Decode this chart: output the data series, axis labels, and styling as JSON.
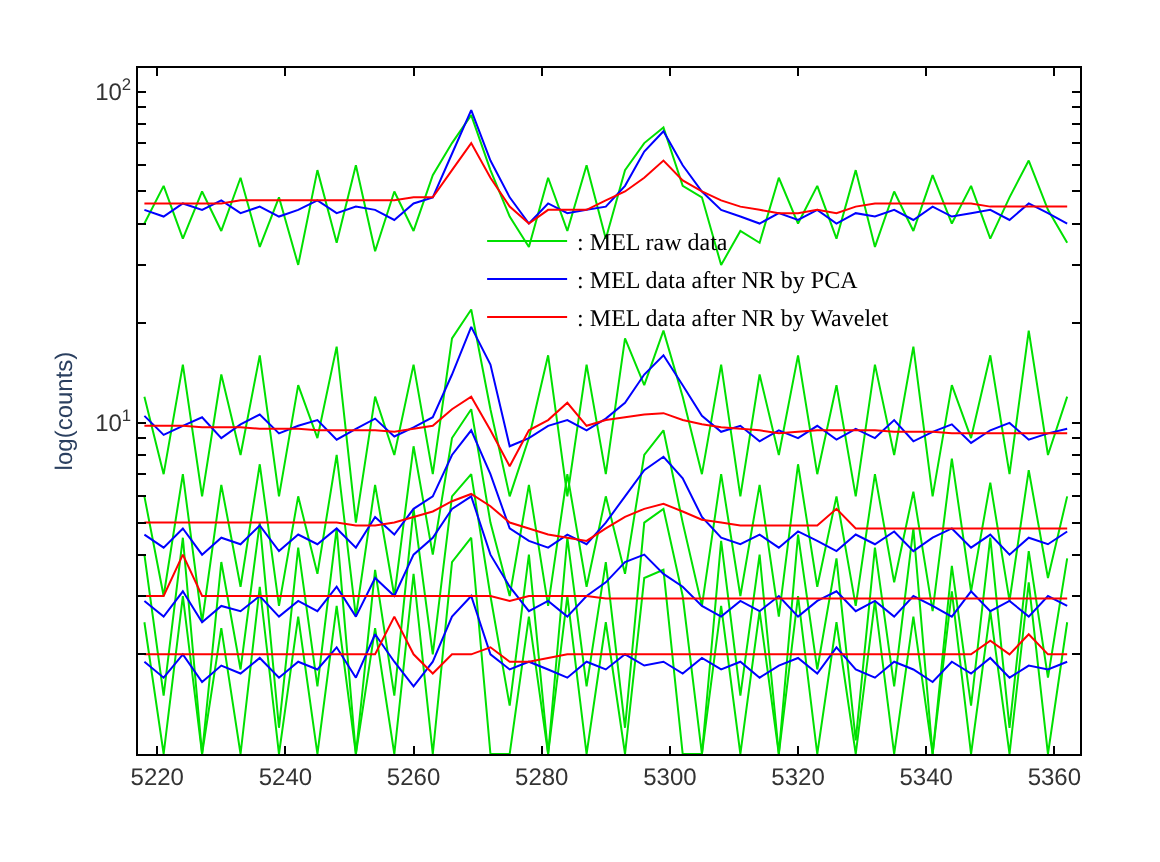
{
  "chart_data": {
    "type": "line",
    "ylabel": "log(counts)",
    "log": "y",
    "legend": "top",
    "marker": "none",
    "line_style": "solid",
    "xlim": [
      5217,
      5364
    ],
    "xticks": [
      5220,
      5240,
      5260,
      5280,
      5300,
      5320,
      5340,
      5360
    ],
    "ylim": [
      1,
      118
    ],
    "yticks": [
      {
        "value": 2,
        "label": null
      },
      {
        "value": 3,
        "label": null
      },
      {
        "value": 4,
        "label": null
      },
      {
        "value": 5,
        "label": null
      },
      {
        "value": 6,
        "label": null
      },
      {
        "value": 7,
        "label": null
      },
      {
        "value": 8,
        "label": null
      },
      {
        "value": 9,
        "label": null
      },
      {
        "value": 10,
        "label": "10$^{1}$"
      },
      {
        "value": 20,
        "label": null
      },
      {
        "value": 30,
        "label": null
      },
      {
        "value": 40,
        "label": null
      },
      {
        "value": 50,
        "label": null
      },
      {
        "value": 60,
        "label": null
      },
      {
        "value": 70,
        "label": null
      },
      {
        "value": 80,
        "label": null
      },
      {
        "value": 90,
        "label": null
      },
      {
        "value": 100,
        "label": "10$^{2}$"
      }
    ],
    "x": [
      5218,
      5221,
      5224,
      5227,
      5230,
      5233,
      5236,
      5239,
      5242,
      5245,
      5248,
      5251,
      5254,
      5257,
      5260,
      5263,
      5266,
      5269,
      5272,
      5275,
      5278,
      5281,
      5284,
      5287,
      5290,
      5293,
      5296,
      5299,
      5302,
      5305,
      5308,
      5311,
      5314,
      5317,
      5320,
      5323,
      5326,
      5329,
      5332,
      5335,
      5338,
      5341,
      5344,
      5347,
      5350,
      5353,
      5356,
      5359,
      5362
    ],
    "series": [
      {
        "name": ": MEL raw data",
        "color": "#00e000",
        "values": [
          40,
          52,
          36,
          50,
          38,
          55,
          34,
          48,
          30,
          58,
          35,
          60,
          33,
          50,
          38,
          56,
          70,
          85,
          58,
          42,
          34,
          55,
          38,
          60,
          36,
          58,
          70,
          78,
          52,
          48,
          30,
          38,
          35,
          55,
          40,
          52,
          36,
          58,
          34,
          50,
          38,
          56,
          40,
          52,
          36,
          48,
          62,
          44,
          35
        ]
      },
      {
        "color": "#00e000",
        "values": [
          12,
          7,
          15,
          6,
          14,
          8,
          16,
          6,
          13,
          9,
          17,
          5,
          12,
          8,
          15,
          7,
          18,
          22,
          11,
          6,
          9,
          16,
          6,
          15,
          7,
          18,
          13,
          19,
          12,
          7,
          15,
          6,
          14,
          8,
          16,
          7,
          13,
          6,
          15,
          8,
          17,
          6,
          13,
          9,
          16,
          7,
          19,
          8,
          12
        ]
      },
      {
        "color": "#00e000",
        "values": [
          6,
          3,
          7,
          2.5,
          6.5,
          3.2,
          7.5,
          2.8,
          6,
          3.5,
          8,
          2.6,
          6.5,
          3,
          8.5,
          4,
          9,
          11,
          5,
          3,
          6.5,
          2.8,
          7,
          3.2,
          6,
          3.5,
          8,
          9.5,
          5,
          2.8,
          7,
          3,
          6.5,
          2.6,
          7.5,
          3.2,
          6,
          2.8,
          7,
          3.3,
          6.2,
          2.7,
          7.8,
          3.1,
          6.6,
          2.9,
          7.2,
          3.4,
          6
        ]
      },
      {
        "color": "#00e000",
        "values": [
          4,
          1.5,
          4.5,
          1,
          3.8,
          1.8,
          5,
          1.2,
          4.2,
          1.6,
          4.8,
          1,
          3.6,
          1.5,
          5.5,
          2,
          6,
          7,
          3,
          1.4,
          4,
          1,
          4.5,
          1.6,
          3.8,
          1.2,
          5,
          5.5,
          3,
          1,
          4.4,
          1.5,
          4,
          1,
          4.6,
          1.8,
          3.9,
          1.1,
          4.2,
          1.6,
          4.8,
          1,
          3.7,
          1.4,
          4.5,
          1.2,
          4.1,
          1.7,
          3.9
        ]
      },
      {
        "color": "#00e000",
        "values": [
          2.5,
          1,
          3,
          1,
          2.4,
          1,
          3.2,
          1,
          2.6,
          1,
          2.8,
          1,
          2.4,
          1,
          3.5,
          1,
          3.8,
          4.5,
          1,
          1,
          2.6,
          1,
          3,
          1,
          2.5,
          1,
          3.4,
          3.6,
          1,
          1,
          2.8,
          1,
          2.7,
          1,
          3,
          1,
          2.5,
          1,
          2.9,
          1,
          2.6,
          1,
          3.1,
          1,
          2.7,
          1,
          3.3,
          1,
          2.5
        ]
      },
      {
        "name": ": MEL data after NR by PCA",
        "color": "#0000ff",
        "values": [
          44,
          42,
          46,
          44,
          47,
          43,
          45,
          42,
          44,
          47,
          43,
          45,
          44,
          41,
          46,
          48,
          65,
          88,
          62,
          48,
          40,
          46,
          43,
          44,
          45,
          52,
          66,
          76,
          60,
          50,
          44,
          42,
          40,
          43,
          41,
          44,
          40,
          43,
          42,
          44,
          41,
          45,
          42,
          43,
          44,
          41,
          46,
          43,
          40
        ]
      },
      {
        "color": "#0000ff",
        "values": [
          10.5,
          9.2,
          9.8,
          10.4,
          9.0,
          9.9,
          10.6,
          9.3,
          9.8,
          10.2,
          8.9,
          9.6,
          10.3,
          9.1,
          9.7,
          10.4,
          14,
          19.5,
          15,
          8.5,
          9.0,
          9.8,
          10.2,
          9.5,
          10.3,
          11.5,
          14,
          16,
          13,
          10.5,
          9.4,
          9.8,
          8.8,
          9.5,
          9.0,
          9.8,
          8.9,
          9.6,
          9.0,
          10.2,
          8.8,
          9.4,
          9.9,
          8.7,
          9.5,
          10.0,
          8.9,
          9.3,
          9.6
        ]
      },
      {
        "color": "#0000ff",
        "values": [
          4.6,
          4.2,
          4.8,
          4.0,
          4.5,
          4.3,
          4.9,
          4.1,
          4.6,
          4.3,
          4.8,
          4.2,
          5.2,
          4.6,
          5.5,
          6.0,
          8.0,
          9.5,
          7,
          4.8,
          4.4,
          4.2,
          4.6,
          4.3,
          5.0,
          6.0,
          7.2,
          7.9,
          6.8,
          5.2,
          4.5,
          4.3,
          4.6,
          4.2,
          4.7,
          4.4,
          4.1,
          4.6,
          4.3,
          4.7,
          4.1,
          4.5,
          4.8,
          4.2,
          4.6,
          4.0,
          4.5,
          4.3,
          4.7
        ]
      },
      {
        "color": "#0000ff",
        "values": [
          2.9,
          2.6,
          3.1,
          2.5,
          2.8,
          2.7,
          3.0,
          2.6,
          2.9,
          2.7,
          3.2,
          2.6,
          3.4,
          3.0,
          4.0,
          4.5,
          5.5,
          6.0,
          4.0,
          3.2,
          2.7,
          2.9,
          2.6,
          3.0,
          3.3,
          3.8,
          4.0,
          3.5,
          3.2,
          2.8,
          2.6,
          2.9,
          2.7,
          3.0,
          2.6,
          2.9,
          3.1,
          2.7,
          2.9,
          2.6,
          3.0,
          2.8,
          2.6,
          3.1,
          2.7,
          2.9,
          2.6,
          3.0,
          2.8
        ]
      },
      {
        "color": "#0000ff",
        "values": [
          1.9,
          1.7,
          2.0,
          1.65,
          1.85,
          1.75,
          1.95,
          1.7,
          1.9,
          1.8,
          2.1,
          1.7,
          2.3,
          1.9,
          1.6,
          1.9,
          2.6,
          3.0,
          2.0,
          1.8,
          1.9,
          1.8,
          1.7,
          1.9,
          1.8,
          2.0,
          1.85,
          1.9,
          1.75,
          1.95,
          1.8,
          1.9,
          1.7,
          1.85,
          1.95,
          1.75,
          2.1,
          1.8,
          1.7,
          1.9,
          1.8,
          1.65,
          1.9,
          1.75,
          1.95,
          1.7,
          1.85,
          1.8,
          1.9
        ]
      },
      {
        "name": ": MEL data after NR by Wavelet",
        "color": "#ff0000",
        "values": [
          46,
          46,
          46,
          46,
          46,
          47,
          47,
          47,
          47,
          47,
          47,
          47,
          47,
          47,
          48,
          48,
          58,
          70,
          55,
          45,
          40,
          44,
          44,
          44,
          47,
          50,
          55,
          62,
          54,
          50,
          47,
          45,
          44,
          43,
          43,
          44,
          43,
          45,
          46,
          46,
          46,
          46,
          46,
          46,
          45,
          45,
          45,
          45,
          45
        ]
      },
      {
        "color": "#ff0000",
        "values": [
          9.8,
          9.8,
          9.8,
          9.7,
          9.7,
          9.7,
          9.6,
          9.6,
          9.6,
          9.5,
          9.5,
          9.5,
          9.5,
          9.4,
          9.6,
          9.8,
          11,
          12,
          9.5,
          7.4,
          9.5,
          10.2,
          11.5,
          9.8,
          10.2,
          10.4,
          10.6,
          10.7,
          10.2,
          9.9,
          9.7,
          9.6,
          9.5,
          9.3,
          9.4,
          9.5,
          9.5,
          9.5,
          9.5,
          9.4,
          9.4,
          9.4,
          9.3,
          9.3,
          9.3,
          9.3,
          9.3,
          9.3,
          9.3
        ]
      },
      {
        "color": "#ff0000",
        "values": [
          5.0,
          5.0,
          5.0,
          5.0,
          5.0,
          5.0,
          5.0,
          5.0,
          5.0,
          5.0,
          5.0,
          4.9,
          4.9,
          5.0,
          5.2,
          5.4,
          5.8,
          6.1,
          5.6,
          5.0,
          4.8,
          4.6,
          4.5,
          4.4,
          4.8,
          5.2,
          5.5,
          5.7,
          5.4,
          5.1,
          5.0,
          4.9,
          4.9,
          4.9,
          4.9,
          4.9,
          5.5,
          4.8,
          4.8,
          4.8,
          4.8,
          4.8,
          4.8,
          4.8,
          4.8,
          4.8,
          4.8,
          4.8,
          4.8
        ]
      },
      {
        "color": "#ff0000",
        "values": [
          3.0,
          3.0,
          4.0,
          3.0,
          3.0,
          3.0,
          3.0,
          3.0,
          3.0,
          3.0,
          3.0,
          3.0,
          3.0,
          3.0,
          3.0,
          3.0,
          3.0,
          3.0,
          3.0,
          2.9,
          3.0,
          3.0,
          3.0,
          3.0,
          2.95,
          2.95,
          2.95,
          2.95,
          2.95,
          2.95,
          2.95,
          2.95,
          2.95,
          2.95,
          2.95,
          2.95,
          2.95,
          2.95,
          2.95,
          2.95,
          2.95,
          2.95,
          2.95,
          2.95,
          2.95,
          2.95,
          2.95,
          2.95,
          2.95
        ]
      },
      {
        "color": "#ff0000",
        "values": [
          2.0,
          2.0,
          2.0,
          2.0,
          2.0,
          2.0,
          2.0,
          2.0,
          2.0,
          2.0,
          2.0,
          2.0,
          2.0,
          2.6,
          2.0,
          1.75,
          2.0,
          2.0,
          2.1,
          1.9,
          1.9,
          1.95,
          2.0,
          2.0,
          2.0,
          2.0,
          2.0,
          2.0,
          2.0,
          2.0,
          2.0,
          2.0,
          2.0,
          2.0,
          2.0,
          2.0,
          2.0,
          2.0,
          2.0,
          2.0,
          2.0,
          2.0,
          2.0,
          2.0,
          2.2,
          2.0,
          2.3,
          2.0,
          2.0
        ]
      }
    ]
  }
}
